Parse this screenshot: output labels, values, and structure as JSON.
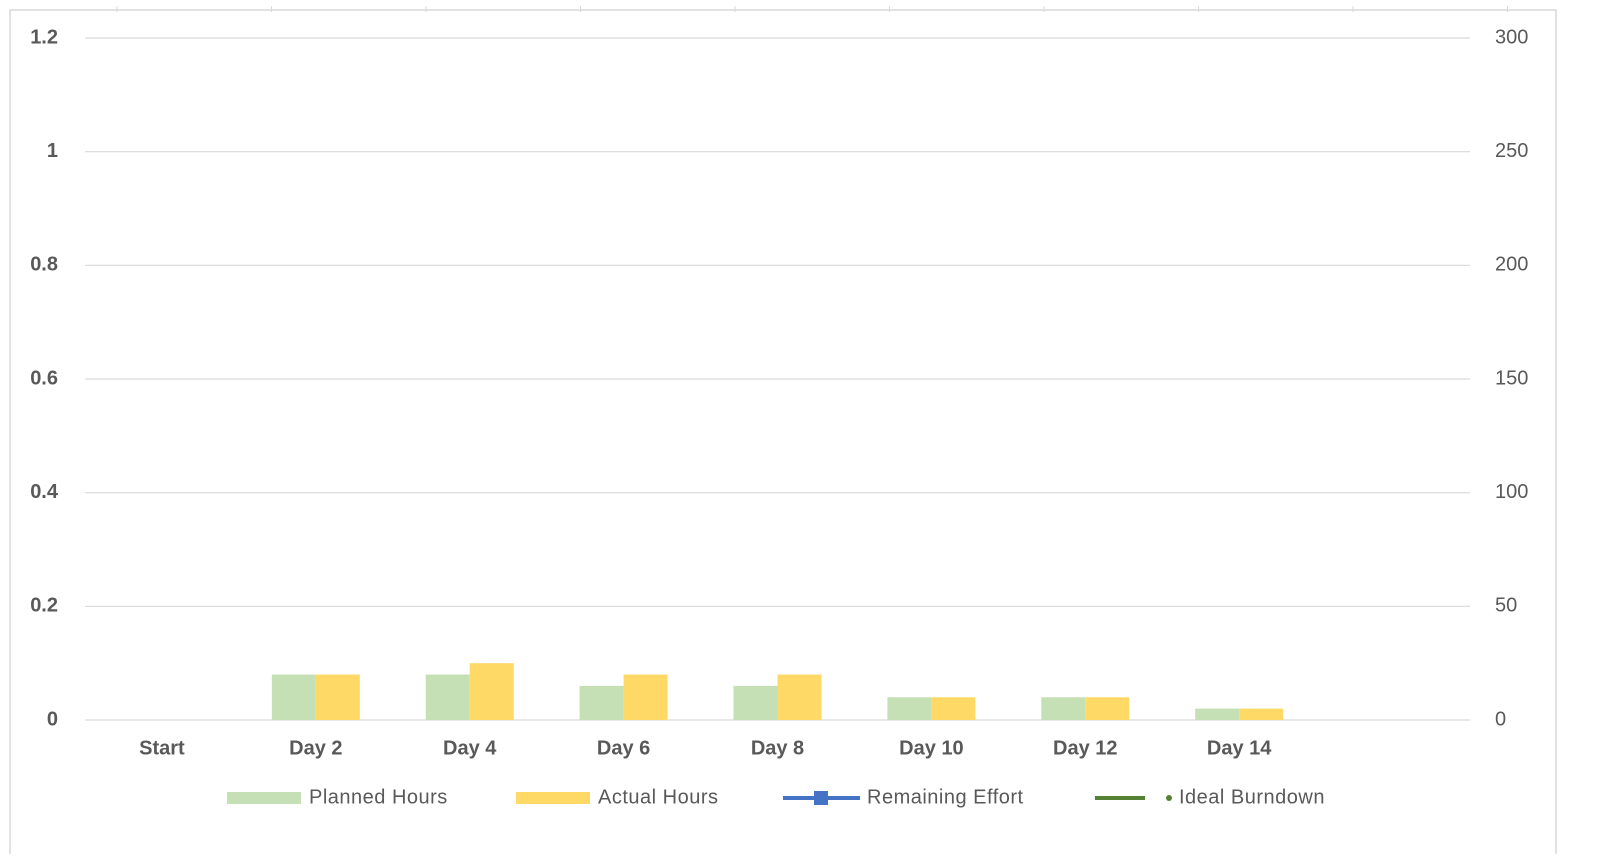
{
  "chart_data": {
    "type": "bar",
    "categories": [
      "Start",
      "Day 2",
      "Day 4",
      "Day 6",
      "Day 8",
      "Day 10",
      "Day 12",
      "Day 14",
      null
    ],
    "series": [
      {
        "name": "Planned Hours",
        "color": "#c5e0b4",
        "values": [
          0,
          0.08,
          0.08,
          0.06,
          0.06,
          0.04,
          0.04,
          0.02,
          null
        ]
      },
      {
        "name": "Actual Hours",
        "color": "#ffd966",
        "values": [
          0,
          0.08,
          0.1,
          0.08,
          0.08,
          0.04,
          0.04,
          0.02,
          null
        ]
      },
      {
        "name": "Remaining Effort",
        "color": "#4472c4",
        "axis": "y2",
        "values": [
          null,
          null,
          null,
          null,
          null,
          null,
          null,
          null,
          null
        ]
      },
      {
        "name": "Ideal Burndown",
        "color": "#548235",
        "axis": "y2",
        "values": [
          null,
          null,
          null,
          null,
          null,
          null,
          null,
          null,
          null
        ]
      }
    ],
    "ylim": [
      0,
      1.2
    ],
    "yticks": [
      0,
      0.2,
      0.4,
      0.6,
      0.8,
      1,
      1.2
    ],
    "y2lim": [
      0,
      300
    ],
    "y2ticks": [
      0,
      50,
      100,
      150,
      200,
      250,
      300
    ],
    "grid": true,
    "legend": "bottom"
  }
}
